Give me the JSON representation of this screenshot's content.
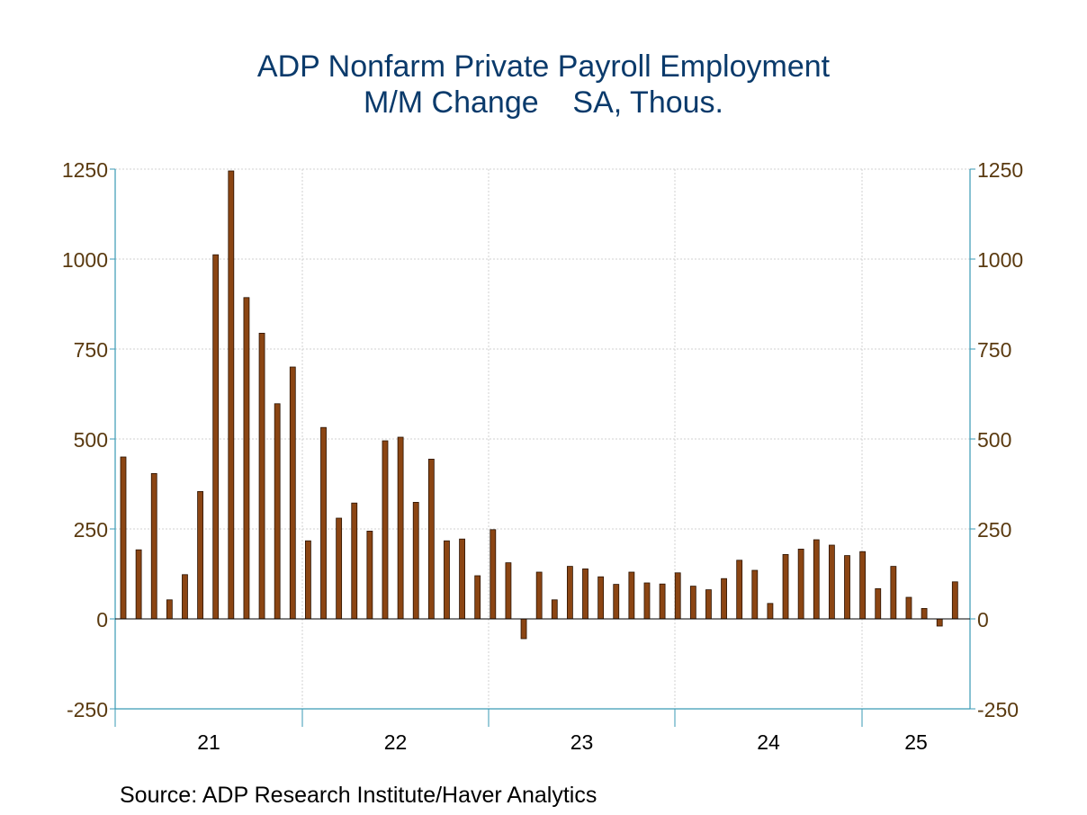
{
  "chart_data": {
    "type": "bar",
    "title": "ADP Nonfarm Private Payroll Employment",
    "subtitle": "M/M Change    SA, Thous.",
    "ylim": [
      -250,
      1250
    ],
    "y_ticks": [
      1250,
      1000,
      750,
      500,
      250,
      0,
      -250
    ],
    "x_tick_labels": [
      "21",
      "22",
      "23",
      "24",
      "25"
    ],
    "grid": true,
    "bar_color": "#8b4513",
    "bar_edge_color": "#2a1200",
    "series": [
      {
        "values": [
          450,
          192,
          404,
          53,
          123,
          354,
          1012,
          1245,
          893,
          794,
          598,
          700,
          217,
          532,
          280,
          322,
          244,
          495,
          505,
          324,
          444,
          217,
          222,
          120,
          248,
          156,
          -55,
          130,
          53,
          146,
          139,
          117,
          96,
          130,
          100,
          97,
          128,
          91,
          81,
          112,
          163,
          135,
          43,
          179,
          194,
          220,
          205,
          176,
          187,
          84,
          146,
          60,
          29,
          -20,
          103
        ]
      }
    ]
  },
  "source": "Source:  ADP Research Institute/Haver Analytics"
}
